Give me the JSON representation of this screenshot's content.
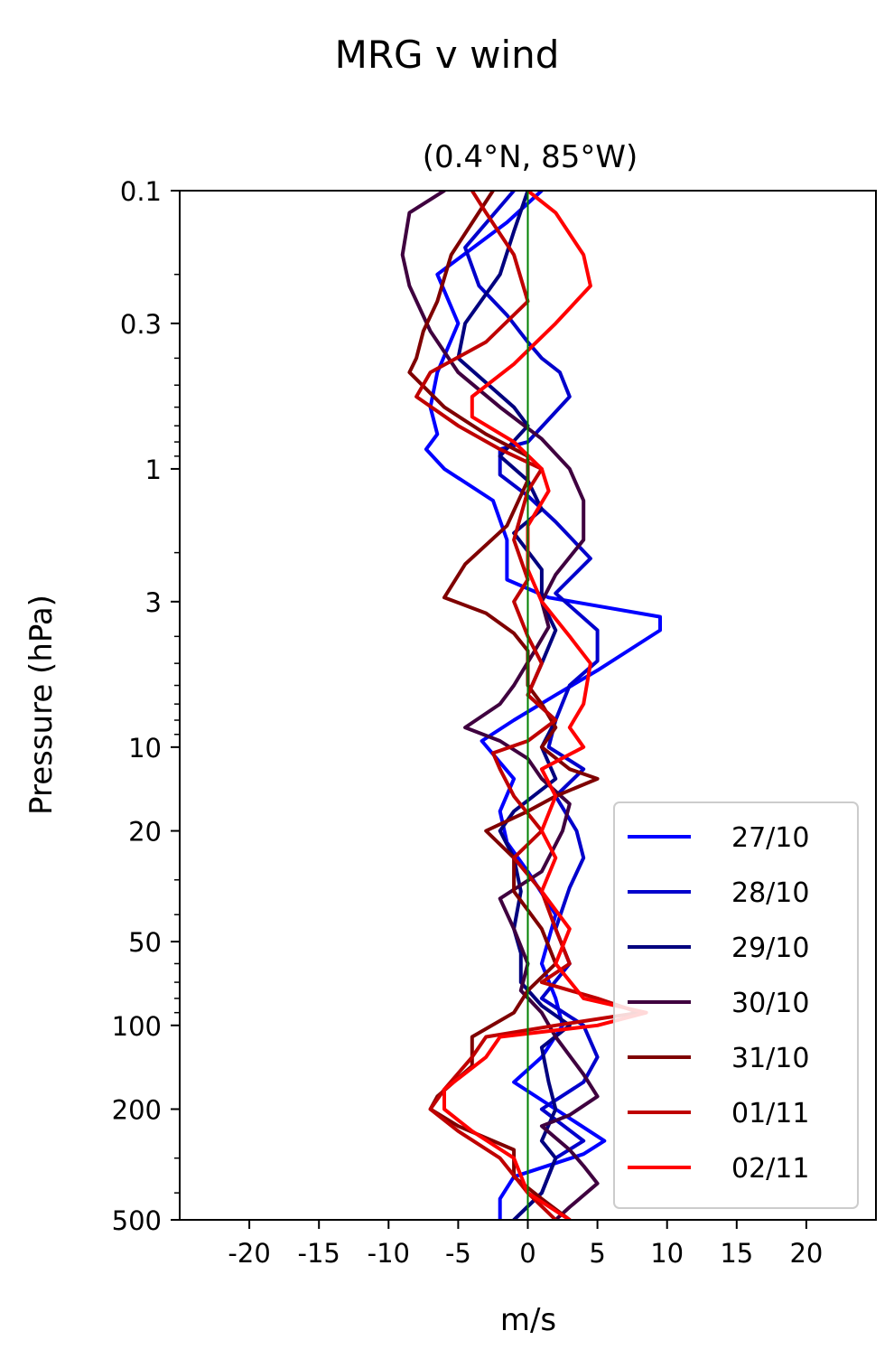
{
  "chart_data": {
    "type": "line",
    "title": "MRG v wind",
    "subtitle": "(0.4°N, 85°W)",
    "xlabel": "m/s",
    "ylabel": "Pressure (hPa)",
    "xlim": [
      -25,
      25
    ],
    "ylim": [
      500,
      0.1
    ],
    "y_scale": "log",
    "y_inverted": true,
    "x_ticks": [
      -20,
      -15,
      -10,
      -5,
      0,
      5,
      10,
      15,
      20
    ],
    "x_tick_labels": [
      "-20",
      "-15",
      "-10",
      "-5",
      "0",
      "5",
      "10",
      "15",
      "20"
    ],
    "y_ticks": [
      0.1,
      0.3,
      1,
      3,
      10,
      20,
      50,
      100,
      200,
      500
    ],
    "y_tick_labels": [
      "0.1",
      "0.3",
      "1",
      "3",
      "10",
      "20",
      "50",
      "100",
      "200",
      "500"
    ],
    "grid": false,
    "legend_position": "bottom-right",
    "zero_line": {
      "x": 0,
      "color": "#008000"
    },
    "series": [
      {
        "name": "27/10",
        "color": "#0000ff",
        "points": [
          [
            1,
            0.1
          ],
          [
            -1.5,
            0.13
          ],
          [
            -6.5,
            0.2
          ],
          [
            -5,
            0.3
          ],
          [
            -6.5,
            0.45
          ],
          [
            -7,
            0.6
          ],
          [
            -6.5,
            0.75
          ],
          [
            -7.3,
            0.85
          ],
          [
            -6,
            1
          ],
          [
            -2.5,
            1.3
          ],
          [
            -1.5,
            1.8
          ],
          [
            -1.5,
            2.5
          ],
          [
            1.5,
            2.9
          ],
          [
            9.5,
            3.4
          ],
          [
            9.5,
            3.8
          ],
          [
            5,
            5.3
          ],
          [
            2,
            6.5
          ],
          [
            -1,
            8
          ],
          [
            -3.3,
            9.5
          ],
          [
            -1,
            13
          ],
          [
            -2,
            17
          ],
          [
            -1.5,
            22
          ],
          [
            0,
            28
          ],
          [
            2,
            40
          ],
          [
            1,
            60
          ],
          [
            2,
            80
          ],
          [
            2.5,
            100
          ],
          [
            1,
            130
          ],
          [
            -1,
            160
          ],
          [
            2,
            200
          ],
          [
            5.5,
            260
          ],
          [
            4,
            290
          ],
          [
            -1,
            350
          ],
          [
            -2,
            420
          ],
          [
            -2,
            500
          ]
        ]
      },
      {
        "name": "28/10",
        "color": "#0000cc",
        "points": [
          [
            -1,
            0.1
          ],
          [
            -4.5,
            0.16
          ],
          [
            -3.5,
            0.22
          ],
          [
            -1.5,
            0.28
          ],
          [
            0,
            0.35
          ],
          [
            1,
            0.4
          ],
          [
            2.3,
            0.45
          ],
          [
            3,
            0.55
          ],
          [
            0,
            0.8
          ],
          [
            -2,
            0.85
          ],
          [
            -2,
            1.05
          ],
          [
            0,
            1.25
          ],
          [
            2,
            1.55
          ],
          [
            4.5,
            2.1
          ],
          [
            2,
            2.8
          ],
          [
            5,
            3.8
          ],
          [
            5,
            4.9
          ],
          [
            3,
            6
          ],
          [
            2,
            8
          ],
          [
            1.5,
            10
          ],
          [
            4,
            12
          ],
          [
            2,
            15
          ],
          [
            3.5,
            20
          ],
          [
            4,
            25
          ],
          [
            3,
            32
          ],
          [
            2,
            45
          ],
          [
            3,
            60
          ],
          [
            1,
            80
          ],
          [
            4,
            100
          ],
          [
            5,
            130
          ],
          [
            4,
            160
          ],
          [
            1,
            200
          ],
          [
            4,
            260
          ],
          [
            2,
            300
          ],
          [
            1,
            400
          ],
          [
            -1,
            500
          ]
        ]
      },
      {
        "name": "29/10",
        "color": "#00007f",
        "points": [
          [
            0,
            0.1
          ],
          [
            -1,
            0.14
          ],
          [
            -2,
            0.2
          ],
          [
            -4.5,
            0.3
          ],
          [
            -5,
            0.4
          ],
          [
            -1,
            0.6
          ],
          [
            0,
            0.7
          ],
          [
            -2,
            0.9
          ],
          [
            0,
            1.1
          ],
          [
            1,
            1.4
          ],
          [
            -1,
            1.7
          ],
          [
            1,
            2.3
          ],
          [
            1,
            3
          ],
          [
            2,
            3.8
          ],
          [
            1,
            5
          ],
          [
            0,
            6.5
          ],
          [
            2,
            8
          ],
          [
            1,
            10
          ],
          [
            2,
            13
          ],
          [
            -1,
            17
          ],
          [
            -2,
            20
          ],
          [
            -1,
            25
          ],
          [
            -0.5,
            33
          ],
          [
            -1,
            45
          ],
          [
            -0.5,
            55
          ],
          [
            -0.5,
            70
          ],
          [
            1,
            85
          ],
          [
            3,
            100
          ],
          [
            1,
            120
          ],
          [
            1.5,
            160
          ],
          [
            2,
            200
          ],
          [
            1,
            260
          ],
          [
            2,
            300
          ],
          [
            1,
            400
          ],
          [
            -1,
            500
          ]
        ]
      },
      {
        "name": "30/10",
        "color": "#3f003f",
        "points": [
          [
            -6,
            0.1
          ],
          [
            -8.5,
            0.12
          ],
          [
            -9,
            0.17
          ],
          [
            -8.5,
            0.22
          ],
          [
            -7,
            0.32
          ],
          [
            -5,
            0.45
          ],
          [
            -2,
            0.6
          ],
          [
            1,
            0.78
          ],
          [
            3,
            1
          ],
          [
            4,
            1.3
          ],
          [
            4,
            1.8
          ],
          [
            2,
            2.4
          ],
          [
            1,
            3
          ],
          [
            1.5,
            3.7
          ],
          [
            0.5,
            4.5
          ],
          [
            -1,
            6
          ],
          [
            -2,
            7
          ],
          [
            -4.5,
            8.5
          ],
          [
            -2,
            9.5
          ],
          [
            0,
            11
          ],
          [
            1,
            13
          ],
          [
            3,
            16
          ],
          [
            2.5,
            20
          ],
          [
            1,
            28
          ],
          [
            -2,
            35
          ],
          [
            -1,
            45
          ],
          [
            0,
            60
          ],
          [
            -0.5,
            75
          ],
          [
            1,
            90
          ],
          [
            2,
            110
          ],
          [
            4,
            150
          ],
          [
            5,
            180
          ],
          [
            3,
            210
          ],
          [
            1,
            230
          ],
          [
            3,
            280
          ],
          [
            4,
            320
          ],
          [
            5,
            370
          ],
          [
            3,
            450
          ],
          [
            2,
            500
          ]
        ]
      },
      {
        "name": "31/10",
        "color": "#7f0000",
        "points": [
          [
            -2.5,
            0.1
          ],
          [
            -5.5,
            0.17
          ],
          [
            -6.5,
            0.25
          ],
          [
            -7.5,
            0.32
          ],
          [
            -8,
            0.4
          ],
          [
            -8.5,
            0.45
          ],
          [
            -6,
            0.6
          ],
          [
            -3,
            0.75
          ],
          [
            0,
            0.9
          ],
          [
            0,
            1.1
          ],
          [
            -1.5,
            1.6
          ],
          [
            -4.5,
            2.2
          ],
          [
            -6,
            2.9
          ],
          [
            -3,
            3.3
          ],
          [
            -1,
            3.9
          ],
          [
            0,
            4.5
          ],
          [
            0,
            6
          ],
          [
            1,
            7
          ],
          [
            2,
            8.5
          ],
          [
            1,
            10
          ],
          [
            3,
            12
          ],
          [
            5,
            13
          ],
          [
            2,
            15
          ],
          [
            0,
            17
          ],
          [
            -3,
            20
          ],
          [
            -1,
            25
          ],
          [
            -1,
            33
          ],
          [
            1,
            45
          ],
          [
            2,
            60
          ],
          [
            0,
            75
          ],
          [
            -1,
            90
          ],
          [
            -4,
            110
          ],
          [
            -4,
            140
          ],
          [
            -6.5,
            180
          ],
          [
            -7,
            200
          ],
          [
            -5,
            230
          ],
          [
            -1,
            280
          ],
          [
            -1,
            350
          ],
          [
            1,
            420
          ],
          [
            3,
            500
          ]
        ]
      },
      {
        "name": "01/11",
        "color": "#bf0000",
        "points": [
          [
            -4,
            0.1
          ],
          [
            -3,
            0.12
          ],
          [
            -1,
            0.17
          ],
          [
            0,
            0.25
          ],
          [
            -3,
            0.35
          ],
          [
            -7,
            0.45
          ],
          [
            -8,
            0.55
          ],
          [
            -5,
            0.7
          ],
          [
            -2,
            0.85
          ],
          [
            1,
            1
          ],
          [
            0,
            1.2
          ],
          [
            -1,
            1.8
          ],
          [
            0,
            2.5
          ],
          [
            -1,
            3
          ],
          [
            0,
            4
          ],
          [
            1,
            5
          ],
          [
            0,
            6.5
          ],
          [
            2,
            8
          ],
          [
            0,
            9.5
          ],
          [
            -2.5,
            10.5
          ],
          [
            -2,
            12
          ],
          [
            -1,
            15
          ],
          [
            1,
            20
          ],
          [
            -1,
            25
          ],
          [
            1,
            33
          ],
          [
            2,
            45
          ],
          [
            3,
            60
          ],
          [
            1,
            70
          ],
          [
            5,
            80
          ],
          [
            8,
            90
          ],
          [
            2,
            100
          ],
          [
            -3,
            110
          ],
          [
            -4,
            130
          ],
          [
            -6,
            170
          ],
          [
            -7,
            200
          ],
          [
            -5,
            240
          ],
          [
            -2,
            300
          ],
          [
            0,
            400
          ],
          [
            2,
            500
          ]
        ]
      },
      {
        "name": "02/11",
        "color": "#ff0000",
        "points": [
          [
            0,
            0.1
          ],
          [
            2,
            0.12
          ],
          [
            4,
            0.17
          ],
          [
            4.5,
            0.22
          ],
          [
            2,
            0.3
          ],
          [
            -1,
            0.42
          ],
          [
            -4,
            0.55
          ],
          [
            -4,
            0.65
          ],
          [
            -1,
            0.8
          ],
          [
            1,
            1
          ],
          [
            1.5,
            1.2
          ],
          [
            0,
            1.6
          ],
          [
            0,
            2.3
          ],
          [
            1,
            3
          ],
          [
            3,
            4
          ],
          [
            4.5,
            5
          ],
          [
            4,
            7
          ],
          [
            3,
            8.5
          ],
          [
            4,
            10
          ],
          [
            1,
            12
          ],
          [
            2,
            15
          ],
          [
            1,
            20
          ],
          [
            2,
            25
          ],
          [
            1,
            33
          ],
          [
            3,
            45
          ],
          [
            2,
            60
          ],
          [
            4,
            80
          ],
          [
            8.5,
            90
          ],
          [
            5,
            100
          ],
          [
            -2,
            110
          ],
          [
            -3,
            130
          ],
          [
            -6,
            170
          ],
          [
            -6,
            200
          ],
          [
            -4,
            240
          ],
          [
            -1,
            300
          ],
          [
            0,
            400
          ],
          [
            3,
            500
          ]
        ]
      }
    ]
  }
}
